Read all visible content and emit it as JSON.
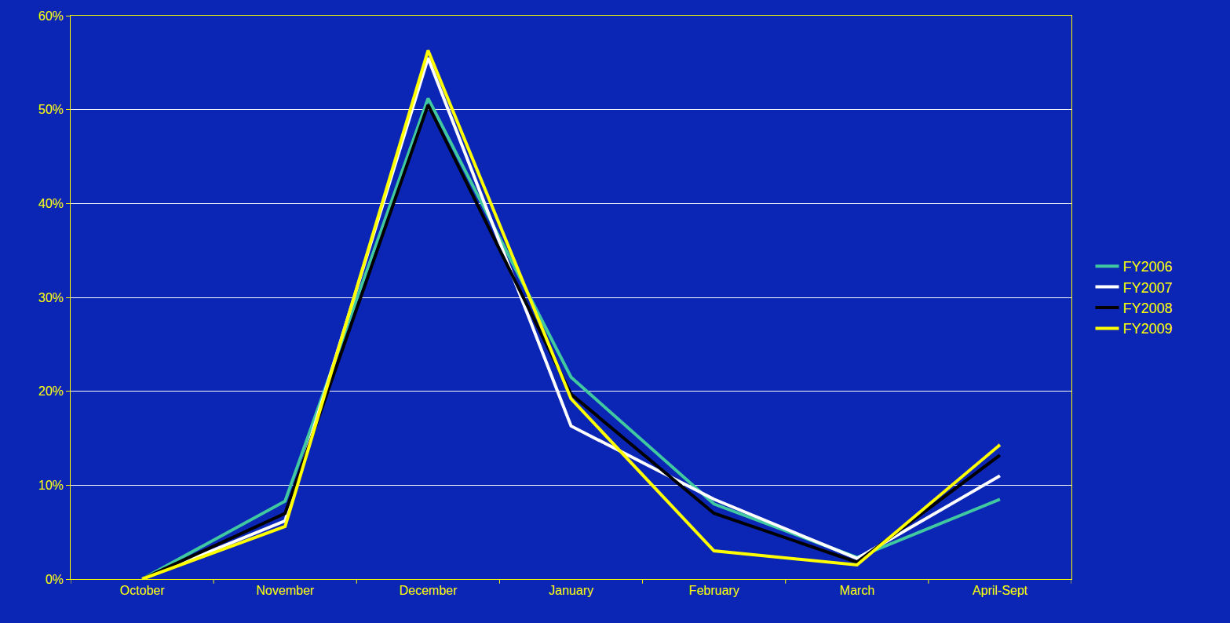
{
  "chart_data": {
    "type": "line",
    "categories": [
      "October",
      "November",
      "December",
      "January",
      "February",
      "March",
      "April-Sept"
    ],
    "series": [
      {
        "name": "FY2006",
        "color": "#40c8a0",
        "values": [
          0,
          8.3,
          51.2,
          21.5,
          8.0,
          2.3,
          8.5
        ]
      },
      {
        "name": "FY2007",
        "color": "#ffffff",
        "values": [
          0,
          6.2,
          55.5,
          16.3,
          8.5,
          2.2,
          11.0
        ]
      },
      {
        "name": "FY2008",
        "color": "#000000",
        "values": [
          0,
          7.0,
          50.5,
          19.7,
          7.0,
          1.8,
          13.2
        ]
      },
      {
        "name": "FY2009",
        "color": "#ffff00",
        "values": [
          0,
          5.6,
          56.3,
          19.2,
          3.0,
          1.5,
          14.3
        ]
      }
    ],
    "ylim": [
      0,
      60
    ],
    "yticks": [
      {
        "value": 0,
        "label": "0%"
      },
      {
        "value": 10,
        "label": "10%"
      },
      {
        "value": 20,
        "label": "20%"
      },
      {
        "value": 30,
        "label": "30%"
      },
      {
        "value": 40,
        "label": "40%"
      },
      {
        "value": 50,
        "label": "50%"
      },
      {
        "value": 60,
        "label": "60%"
      }
    ],
    "grid": true,
    "legend": "right"
  }
}
